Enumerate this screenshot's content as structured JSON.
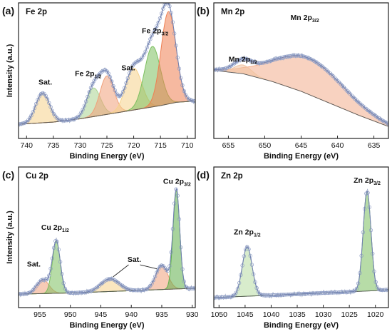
{
  "chart_data": [
    {
      "type": "line",
      "panel_label": "(a)",
      "title": "Fe 2p",
      "xlabel": "Binding Energy (eV)",
      "ylabel": "Intensity (a.u.)",
      "xlim": [
        741.5,
        708.5
      ],
      "ylim": [
        0,
        1
      ],
      "x_reversed": true,
      "xticks": [
        740,
        735,
        730,
        725,
        720,
        715,
        710
      ],
      "xtick_labels": [
        "740",
        "735",
        "730",
        "725",
        "720",
        "715",
        "710"
      ],
      "series": [
        {
          "name": "",
          "role": "background",
          "color": "#555555",
          "x": [
            741.5,
            735,
            730,
            725,
            720,
            715,
            712,
            709
          ],
          "y": [
            0.09,
            0.11,
            0.14,
            0.18,
            0.22,
            0.26,
            0.29,
            0.3
          ]
        },
        {
          "name": "",
          "role": "component",
          "color": "#f6d28b",
          "center": 737,
          "height": 0.27,
          "width": 1.3
        },
        {
          "name": "",
          "role": "component",
          "color": "#a9d48f",
          "center": 727.5,
          "height": 0.26,
          "width": 1.3
        },
        {
          "name": "",
          "role": "component",
          "color": "#f0a07a",
          "center": 725,
          "height": 0.35,
          "width": 1.3
        },
        {
          "name": "",
          "role": "component",
          "color": "#f6d28b",
          "center": 720,
          "height": 0.38,
          "width": 1.5
        },
        {
          "name": "",
          "role": "component",
          "color": "#7cbf5f",
          "center": 716.5,
          "height": 0.55,
          "width": 1.5
        },
        {
          "name": "",
          "role": "component",
          "color": "#ee7f52",
          "center": 713.5,
          "height": 0.84,
          "width": 1.4
        }
      ],
      "annotations": [
        {
          "text": "Sat.",
          "x": 736.5,
          "y": 0.45
        },
        {
          "main": "Fe 2p",
          "sub": "1/2",
          "x": 728.5,
          "y": 0.53
        },
        {
          "text": "Sat.",
          "x": 721,
          "y": 0.58
        },
        {
          "main": "Fe 2p",
          "sub": "3/2",
          "x": 716,
          "y": 0.92
        }
      ]
    },
    {
      "type": "line",
      "panel_label": "(b)",
      "title": "Mn 2p",
      "xlabel": "Binding Energy (eV)",
      "ylabel": "",
      "xlim": [
        657,
        633
      ],
      "ylim": [
        0,
        1
      ],
      "x_reversed": true,
      "xticks": [
        655,
        650,
        645,
        640,
        635
      ],
      "xtick_labels": [
        "655",
        "650",
        "645",
        "640",
        "635"
      ],
      "series": [
        {
          "name": "",
          "role": "background",
          "color": "#555555",
          "x": [
            657,
            653,
            649,
            645,
            641,
            637,
            633
          ],
          "y": [
            0.58,
            0.55,
            0.48,
            0.39,
            0.28,
            0.17,
            0.07
          ]
        },
        {
          "name": "",
          "role": "component",
          "color": "#f3ad8c",
          "center": 644,
          "height": 0.33,
          "width": 4.8
        },
        {
          "name": "",
          "role": "component",
          "color": "#f0c3a0",
          "center": 653,
          "height": 0.08,
          "width": 1.2
        }
      ],
      "annotations": [
        {
          "main": "Mn 2p",
          "sub": "3/2",
          "x": 644.5,
          "y": 1.04
        },
        {
          "main": "Mn 2p",
          "sub": "1/2",
          "x": 653,
          "y": 0.66
        }
      ]
    },
    {
      "type": "line",
      "panel_label": "(c)",
      "title": "Cu 2p",
      "xlabel": "Binding Energy (eV)",
      "ylabel": "Intensity (a.u.)",
      "xlim": [
        958.5,
        929.5
      ],
      "ylim": [
        0,
        1
      ],
      "x_reversed": true,
      "xticks": [
        955,
        950,
        945,
        940,
        935,
        930
      ],
      "xtick_labels": [
        "955",
        "950",
        "945",
        "940",
        "935",
        "930"
      ],
      "series": [
        {
          "name": "",
          "role": "background",
          "color": "#555555",
          "x": [
            958.5,
            950,
            940,
            935,
            930
          ],
          "y": [
            0.08,
            0.09,
            0.11,
            0.12,
            0.13
          ]
        },
        {
          "name": "",
          "role": "component",
          "color": "#f0a07a",
          "center": 954.5,
          "height": 0.12,
          "width": 1.0
        },
        {
          "name": "",
          "role": "component",
          "color": "#7cbf5f",
          "center": 952.3,
          "height": 0.45,
          "width": 0.65
        },
        {
          "name": "",
          "role": "component",
          "color": "#f6d28b",
          "center": 943.5,
          "height": 0.11,
          "width": 1.5
        },
        {
          "name": "",
          "role": "component",
          "color": "#f0a07a",
          "center": 935,
          "height": 0.21,
          "width": 1.0
        },
        {
          "name": "",
          "role": "component",
          "color": "#5fae4a",
          "center": 932.6,
          "height": 0.86,
          "width": 0.55
        }
      ],
      "annotations": [
        {
          "text": "Sat.",
          "x": 956,
          "y": 0.32
        },
        {
          "main": "Cu 2p",
          "sub": "1/2",
          "x": 952.5,
          "y": 0.64
        },
        {
          "text": "Sat.",
          "x": 939.5,
          "y": 0.36
        },
        {
          "main": "Cu 2p",
          "sub": "3/2",
          "x": 932.5,
          "y": 1.04
        }
      ]
    },
    {
      "type": "line",
      "panel_label": "(d)",
      "title": "Zn 2p",
      "xlabel": "Binding Energy (eV)",
      "ylabel": "",
      "xlim": [
        1051,
        1017.5
      ],
      "ylim": [
        0,
        1
      ],
      "x_reversed": true,
      "xticks": [
        1050,
        1045,
        1040,
        1035,
        1030,
        1025,
        1020
      ],
      "xtick_labels": [
        "1050",
        "1045",
        "1040",
        "1035",
        "1030",
        "1025",
        "1020"
      ],
      "series": [
        {
          "name": "",
          "role": "background",
          "color": "#555555",
          "x": [
            1051,
            1040,
            1030,
            1020,
            1017.5
          ],
          "y": [
            0.05,
            0.07,
            0.09,
            0.11,
            0.12
          ]
        },
        {
          "name": "",
          "role": "component",
          "color": "#b8dca3",
          "center": 1044.6,
          "height": 0.43,
          "width": 0.95
        },
        {
          "name": "",
          "role": "component",
          "color": "#7cbf5f",
          "center": 1021.6,
          "height": 0.87,
          "width": 0.75
        }
      ],
      "annotations": [
        {
          "main": "Zn 2p",
          "sub": "1/2",
          "x": 1044.6,
          "y": 0.6
        },
        {
          "main": "Zn 2p",
          "sub": "3/2",
          "x": 1021.6,
          "y": 1.05
        }
      ]
    }
  ]
}
